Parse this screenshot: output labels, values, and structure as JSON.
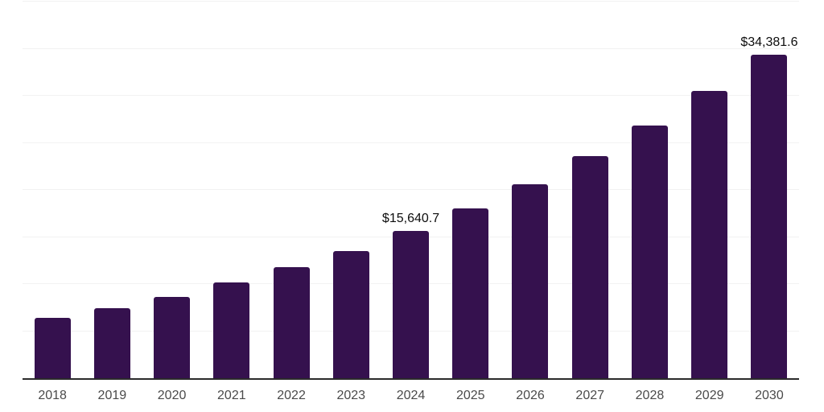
{
  "colors": {
    "background": "#ffffff",
    "bar": "#35114e",
    "axis_line": "#2b2b2b",
    "gridline": "#f2f2f2",
    "tick_label": "#4a4a4a",
    "data_label": "#0d0d0d"
  },
  "chart_data": {
    "type": "bar",
    "title": "",
    "xlabel": "",
    "ylabel": "",
    "categories": [
      "2018",
      "2019",
      "2020",
      "2021",
      "2022",
      "2023",
      "2024",
      "2025",
      "2026",
      "2027",
      "2028",
      "2029",
      "2030"
    ],
    "values": [
      6400,
      7400,
      8600,
      10200,
      11800,
      13500,
      15640.7,
      18000,
      20600,
      23600,
      26800,
      30500,
      34381.6
    ],
    "data_labels": [
      "",
      "",
      "",
      "",
      "",
      "",
      "$15,640.7",
      "",
      "",
      "",
      "",
      "",
      "$34,381.6"
    ],
    "ylim": [
      0,
      40000
    ],
    "gridline_step": 5000,
    "grid": "horizontal-only",
    "legend": "none",
    "y_axis_ticks_visible": false
  }
}
